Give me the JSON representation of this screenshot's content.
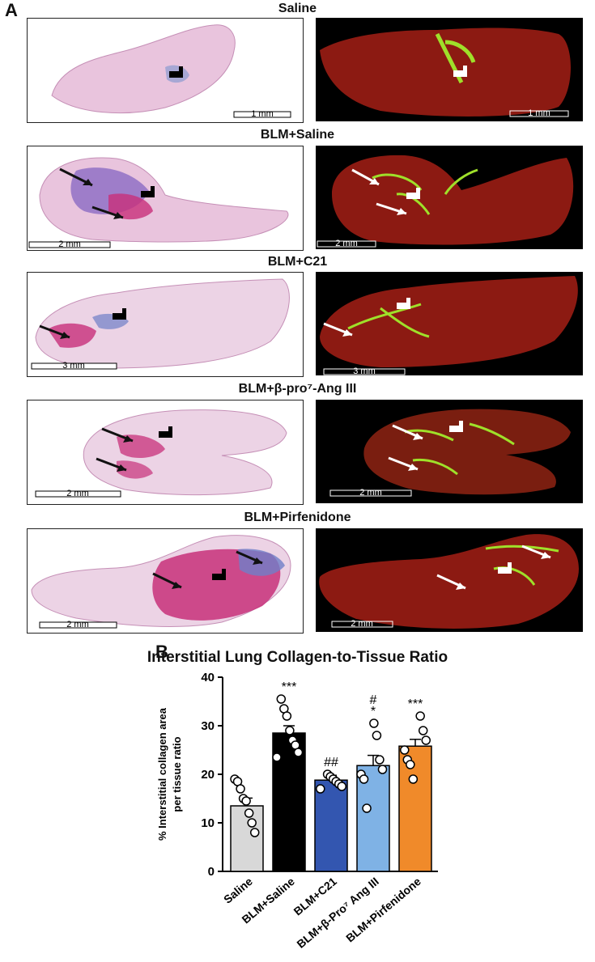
{
  "figure": {
    "panel_a_label": "A",
    "panel_b_label": "B"
  },
  "rows": [
    {
      "title": "Saline",
      "left_scale": "1 mm",
      "right_scale": "1 mm"
    },
    {
      "title": "BLM+Saline",
      "left_scale": "2 mm",
      "right_scale": "2 mm"
    },
    {
      "title": "BLM+C21",
      "left_scale": "3 mm",
      "right_scale": "3 mm"
    },
    {
      "title": "BLM+β-pro⁷-Ang III",
      "left_scale": "2 mm",
      "right_scale": "2 mm"
    },
    {
      "title": "BLM+Pirfenidone",
      "left_scale": "2 mm",
      "right_scale": "2 mm"
    }
  ],
  "chart_data": {
    "type": "bar",
    "title": "Interstitial Lung Collagen-to-Tissue Ratio",
    "ylabel": "% Interstitial collagen area per tissue ratio",
    "ylim": [
      0,
      40
    ],
    "yticks": [
      0,
      10,
      20,
      30,
      40
    ],
    "categories": [
      "Saline",
      "BLM+Saline",
      "BLM+C21",
      "BLM+β-Pro⁷ Ang III",
      "BLM+Pirfenidone"
    ],
    "values": [
      13.5,
      28.5,
      18.8,
      21.8,
      25.8
    ],
    "sem": [
      1.6,
      1.5,
      1.0,
      2.1,
      1.4
    ],
    "colors": [
      "#d8d8d8",
      "#000000",
      "#3356b0",
      "#7fb2e5",
      "#f08a2a"
    ],
    "points": [
      [
        19,
        18.5,
        17,
        15,
        14.5,
        12,
        10,
        8
      ],
      [
        35.5,
        33.5,
        32,
        29,
        27,
        26,
        24.5,
        23.5
      ],
      [
        20,
        19.5,
        19,
        18.5,
        18,
        17.5,
        17
      ],
      [
        30.5,
        28,
        23,
        21,
        20,
        19,
        13
      ],
      [
        32,
        29,
        27,
        25,
        23,
        22,
        19
      ]
    ],
    "annotations": [
      {
        "category": "BLM+Saline",
        "lines": [
          "***"
        ]
      },
      {
        "category": "BLM+C21",
        "lines": [
          "##"
        ]
      },
      {
        "category": "BLM+β-Pro⁷ Ang III",
        "lines": [
          "#",
          "*"
        ]
      },
      {
        "category": "BLM+Pirfenidone",
        "lines": [
          "***"
        ]
      }
    ]
  }
}
